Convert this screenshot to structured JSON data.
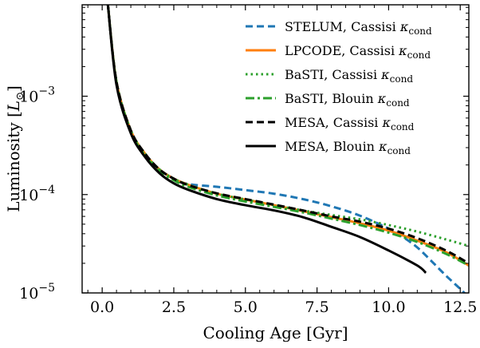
{
  "chart_data": {
    "type": "line",
    "xlabel": "Cooling Age [Gyr]",
    "ylabel": "Luminosity [L_⊙]",
    "ylabel_main": "Luminosity [",
    "ylabel_symbol": "L",
    "ylabel_sub": "⊙",
    "ylabel_close": "]",
    "xlim": [
      -0.7,
      12.8
    ],
    "ylim": [
      1e-05,
      0.0085
    ],
    "yscale": "log",
    "grid": false,
    "legend_position": "top-right",
    "x_ticks": [
      {
        "value": 0.0,
        "label": "0.0"
      },
      {
        "value": 2.5,
        "label": "2.5"
      },
      {
        "value": 5.0,
        "label": "5.0"
      },
      {
        "value": 7.5,
        "label": "7.5"
      },
      {
        "value": 10.0,
        "label": "10.0"
      },
      {
        "value": 12.5,
        "label": "12.5"
      }
    ],
    "y_ticks": [
      {
        "value": 1e-05,
        "base": "10",
        "exp": "−5"
      },
      {
        "value": 0.0001,
        "base": "10",
        "exp": "−4"
      },
      {
        "value": 0.001,
        "base": "10",
        "exp": "−3"
      }
    ],
    "series": [
      {
        "name": "STELUM, Cassisi κcond",
        "legend_main": "STELUM, Cassisi ",
        "legend_kappa": "κ",
        "legend_sub": "cond",
        "color": "#1f77b4",
        "style": "dashed",
        "x": [
          0.2,
          0.5,
          1.0,
          1.5,
          2.0,
          2.5,
          3.0,
          4.0,
          5.0,
          6.0,
          7.0,
          8.0,
          9.0,
          10.0,
          10.5,
          11.0,
          11.5,
          12.0,
          12.5,
          12.8
        ],
        "y": [
          0.0085,
          0.0014,
          0.00045,
          0.00026,
          0.00018,
          0.000145,
          0.000128,
          0.00012,
          0.000111,
          0.000102,
          9e-05,
          7.6e-05,
          6.1e-05,
          4.5e-05,
          3.7e-05,
          2.9e-05,
          2.1e-05,
          1.5e-05,
          1.1e-05,
          9e-06
        ]
      },
      {
        "name": "LPCODE, Cassisi κcond",
        "legend_main": "LPCODE, Cassisi ",
        "legend_kappa": "κ",
        "legend_sub": "cond",
        "color": "#ff7f0e",
        "style": "solid",
        "x": [
          0.2,
          0.5,
          1.0,
          1.5,
          2.0,
          2.5,
          3.0,
          4.0,
          5.0,
          6.0,
          7.0,
          8.0,
          9.0,
          10.0,
          11.0,
          12.0,
          12.8
        ],
        "y": [
          0.0085,
          0.0014,
          0.00045,
          0.00026,
          0.00018,
          0.000145,
          0.000126,
          0.000102,
          8.9e-05,
          7.8e-05,
          6.8e-05,
          5.9e-05,
          5.1e-05,
          4.3e-05,
          3.4e-05,
          2.6e-05,
          1.9e-05
        ]
      },
      {
        "name": "BaSTI, Cassisi κcond",
        "legend_main": "BaSTI, Cassisi ",
        "legend_kappa": "κ",
        "legend_sub": "cond",
        "color": "#2ca02c",
        "style": "dotted",
        "x": [
          0.2,
          0.5,
          1.0,
          1.5,
          2.0,
          2.5,
          3.0,
          4.0,
          5.0,
          6.0,
          7.0,
          8.0,
          9.0,
          10.0,
          11.0,
          12.0,
          12.8
        ],
        "y": [
          0.0085,
          0.0014,
          0.00045,
          0.00026,
          0.00018,
          0.000145,
          0.000126,
          0.000102,
          8.9e-05,
          7.8e-05,
          6.9e-05,
          6.2e-05,
          5.6e-05,
          4.9e-05,
          4.2e-05,
          3.5e-05,
          3e-05
        ]
      },
      {
        "name": "BaSTI, Blouin κcond",
        "legend_main": "BaSTI, Blouin ",
        "legend_kappa": "κ",
        "legend_sub": "cond",
        "color": "#2ca02c",
        "style": "dashdot",
        "x": [
          0.2,
          0.5,
          1.0,
          1.5,
          2.0,
          2.5,
          3.0,
          4.0,
          5.0,
          6.0,
          7.0,
          8.0,
          9.0,
          10.0,
          11.0,
          12.0,
          12.8
        ],
        "y": [
          0.0085,
          0.0014,
          0.00044,
          0.00025,
          0.000175,
          0.00014,
          0.00012,
          9.8e-05,
          8.5e-05,
          7.5e-05,
          6.6e-05,
          5.7e-05,
          4.9e-05,
          4.1e-05,
          3.3e-05,
          2.5e-05,
          1.9e-05
        ]
      },
      {
        "name": "MESA, Cassisi κcond",
        "legend_main": "MESA, Cassisi ",
        "legend_kappa": "κ",
        "legend_sub": "cond",
        "color": "#000000",
        "style": "dashed",
        "x": [
          0.2,
          0.5,
          1.0,
          1.5,
          2.0,
          2.5,
          3.0,
          4.0,
          5.0,
          6.0,
          7.0,
          8.0,
          9.0,
          10.0,
          11.0,
          12.0,
          12.8
        ],
        "y": [
          0.0085,
          0.0014,
          0.00045,
          0.00026,
          0.00018,
          0.000145,
          0.000125,
          0.000103,
          9e-05,
          7.9e-05,
          6.9e-05,
          6e-05,
          5.3e-05,
          4.5e-05,
          3.6e-05,
          2.7e-05,
          2e-05
        ]
      },
      {
        "name": "MESA, Blouin κcond",
        "legend_main": "MESA, Blouin ",
        "legend_kappa": "κ",
        "legend_sub": "cond",
        "color": "#000000",
        "style": "solid",
        "x": [
          0.2,
          0.5,
          1.0,
          1.5,
          2.0,
          2.5,
          3.0,
          4.0,
          5.0,
          6.0,
          7.0,
          8.0,
          9.0,
          10.0,
          11.0,
          11.3
        ],
        "y": [
          0.0085,
          0.0013,
          0.00042,
          0.00024,
          0.000165,
          0.00013,
          0.000112,
          9e-05,
          7.8e-05,
          6.9e-05,
          5.9e-05,
          4.7e-05,
          3.7e-05,
          2.7e-05,
          1.9e-05,
          1.6e-05
        ]
      }
    ]
  }
}
